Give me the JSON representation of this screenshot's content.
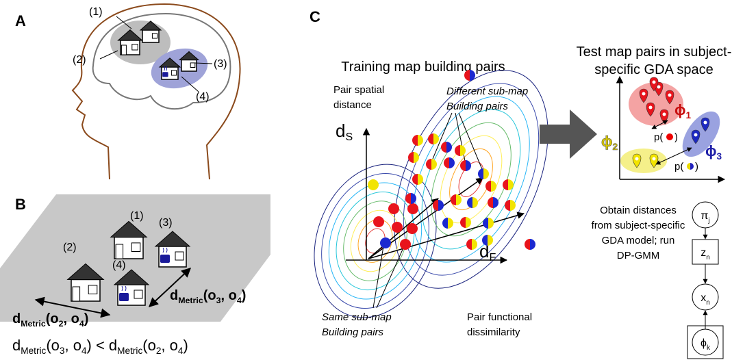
{
  "panel_a": {
    "label": "A",
    "houses": [
      "(1)",
      "(2)",
      "(3)",
      "(4)"
    ]
  },
  "panel_b": {
    "label": "B",
    "houses": [
      "(1)",
      "(2)",
      "(3)",
      "(4)"
    ],
    "distance_left": [
      "d",
      "Metric",
      "(o",
      "2",
      ", o",
      "4",
      ")"
    ],
    "distance_right": [
      "d",
      "Metric",
      "(o",
      "3",
      ", o",
      "4",
      ")"
    ],
    "inequality": [
      "d",
      "Metric",
      "(o",
      "3",
      ", o",
      "4",
      ") < d",
      "Metric",
      "(o",
      "2",
      ", o",
      "4",
      ")"
    ]
  },
  "panel_c": {
    "label": "C",
    "training_title": "Training map building pairs",
    "y_axis_label": [
      "Pair spatial",
      "distance"
    ],
    "y_axis_symbol": [
      "d",
      "S"
    ],
    "x_axis_symbol": [
      "d",
      "F"
    ],
    "x_axis_label": [
      "Pair functional",
      "dissimilarity"
    ],
    "different_label": [
      "Different sub-map",
      "Building pairs"
    ],
    "same_label": [
      "Same sub-map",
      "Building pairs"
    ],
    "test_title": [
      "Test map pairs in subject-",
      "specific GDA space"
    ],
    "clusters": [
      [
        "ϕ",
        "1"
      ],
      [
        "ϕ",
        "2"
      ],
      [
        "ϕ",
        "3"
      ]
    ],
    "prob_open": "p(",
    "prob_close": ")",
    "method_text": [
      "Obtain distances",
      "from subject-specific",
      "GDA model; run",
      "DP-GMM"
    ],
    "model_nodes": [
      [
        "π",
        "j"
      ],
      [
        "z",
        "n"
      ],
      [
        "x",
        "n"
      ],
      [
        "ϕ",
        "k"
      ]
    ]
  }
}
